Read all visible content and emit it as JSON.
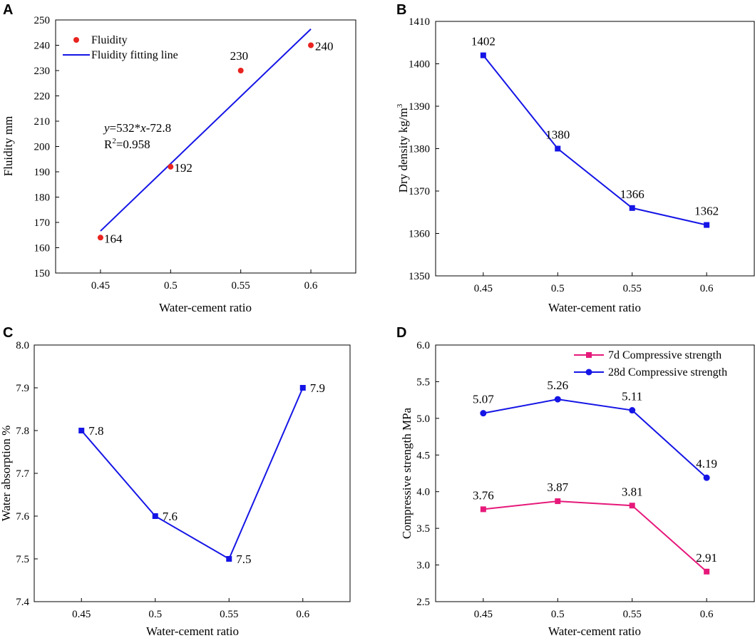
{
  "chart_data": [
    {
      "panel": "A",
      "type": "scatter",
      "x": [
        0.45,
        0.5,
        0.55,
        0.6
      ],
      "x_ticks": [
        "0.45",
        "0.5",
        "0.55",
        "0.6"
      ],
      "y": [
        164,
        192,
        230,
        240
      ],
      "labels": [
        "164",
        "192",
        "230",
        "240"
      ],
      "fit": {
        "slope": 532,
        "intercept": -72.8,
        "x_range": [
          0.45,
          0.6
        ]
      },
      "ylim": [
        150,
        250
      ],
      "y_ticks": [
        "150",
        "160",
        "170",
        "180",
        "190",
        "200",
        "210",
        "220",
        "230",
        "240",
        "250"
      ],
      "xlabel": "Water-cement ratio",
      "ylabel": "Fluidity mm",
      "legend": [
        "Fluidity",
        "Fluidity fitting line"
      ],
      "legend_position": "top-left",
      "equation": {
        "y": "y",
        "rest": "=532*",
        "x": "x",
        "tail": "-72.8",
        "r": "R",
        "sup": "2",
        "r_value": "=0.958"
      },
      "colors": {
        "marker": "#e8231f",
        "line": "#1515e6"
      }
    },
    {
      "panel": "B",
      "type": "line",
      "x": [
        0.45,
        0.5,
        0.55,
        0.6
      ],
      "x_ticks": [
        "0.45",
        "0.5",
        "0.55",
        "0.6"
      ],
      "values": [
        1402,
        1380,
        1366,
        1362
      ],
      "labels": [
        "1402",
        "1380",
        "1366",
        "1362"
      ],
      "ylim": [
        1350,
        1410
      ],
      "y_ticks": [
        "1350",
        "1360",
        "1370",
        "1380",
        "1390",
        "1400",
        "1410"
      ],
      "xlabel": "Water-cement ratio",
      "ylabel_main": "Dry density kg/m",
      "ylabel_sup": "3",
      "colors": {
        "line": "#1515e6"
      }
    },
    {
      "panel": "C",
      "type": "line",
      "x": [
        0.45,
        0.5,
        0.55,
        0.6
      ],
      "x_ticks": [
        "0.45",
        "0.5",
        "0.55",
        "0.6"
      ],
      "values": [
        7.8,
        7.6,
        7.5,
        7.9
      ],
      "labels": [
        "7.8",
        "7.6",
        "7.5",
        "7.9"
      ],
      "ylim": [
        7.4,
        8.0
      ],
      "y_ticks": [
        "7.4",
        "7.5",
        "7.6",
        "7.7",
        "7.8",
        "7.9",
        "8.0"
      ],
      "xlabel": "Water-cement ratio",
      "ylabel": "Water absorption %",
      "colors": {
        "line": "#1515e6"
      }
    },
    {
      "panel": "D",
      "type": "line",
      "x": [
        0.45,
        0.5,
        0.55,
        0.6
      ],
      "x_ticks": [
        "0.45",
        "0.5",
        "0.55",
        "0.6"
      ],
      "series": [
        {
          "name": "7d Compressive strength",
          "values": [
            3.76,
            3.87,
            3.81,
            2.91
          ],
          "labels": [
            "3.76",
            "3.87",
            "3.81",
            "2.91"
          ],
          "color": "#e6197a",
          "marker": "square"
        },
        {
          "name": "28d Compressive strength",
          "values": [
            5.07,
            5.26,
            5.11,
            4.19
          ],
          "labels": [
            "5.07",
            "5.26",
            "5.11",
            "4.19"
          ],
          "color": "#1515e6",
          "marker": "circle"
        }
      ],
      "ylim": [
        2.5,
        6.0
      ],
      "y_ticks": [
        "2.5",
        "3.0",
        "3.5",
        "4.0",
        "4.5",
        "5.0",
        "5.5",
        "6.0"
      ],
      "xlabel": "Water-cement ratio",
      "ylabel": "Compressive strength MPa",
      "legend_position": "top-right"
    }
  ]
}
